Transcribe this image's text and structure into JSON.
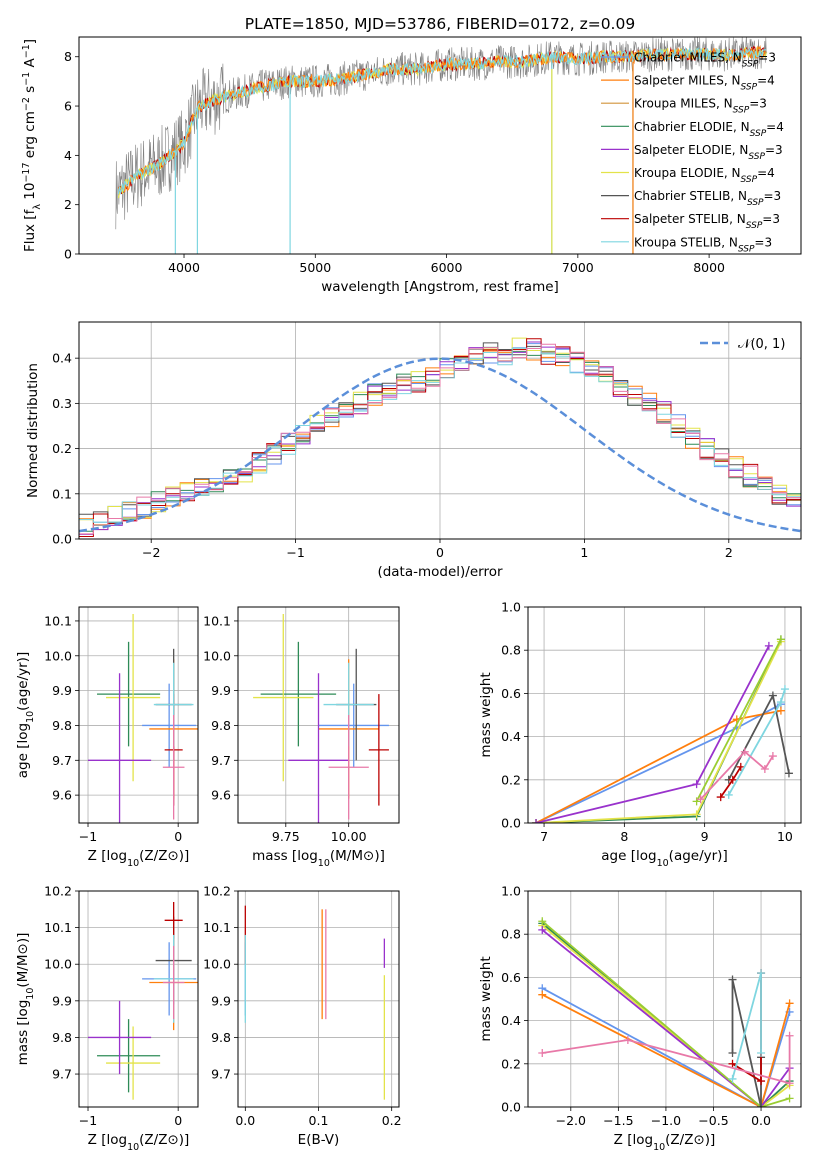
{
  "figure_title": "PLATE=1850, MJD=53786, FIBERID=0172, z=0.09",
  "palette": {
    "Chabrier MILES": "#6495ed",
    "Salpeter MILES": "#ff7f0e",
    "Kroupa MILES": "#d2943a",
    "Chabrier ELODIE": "#2e8b57",
    "Salpeter ELODIE": "#9932cc",
    "Kroupa ELODIE": "#e3e34a",
    "Chabrier STELIB": "#555555",
    "Salpeter STELIB": "#bb0000",
    "Kroupa STELIB": "#7fd6e0",
    "extra_pink": "#e879a8",
    "extra_lime": "#9acd32",
    "data": "#808080",
    "normal": "#5b8fd9"
  },
  "chart_data": [
    {
      "id": "spectrum",
      "type": "line",
      "title": "PLATE=1850, MJD=53786, FIBERID=0172, z=0.09",
      "xlabel": "wavelength [Angstrom, rest frame]",
      "ylabel": "Flux [f_λ 10^-17 erg cm^-2 s^-1 A^-1]",
      "xlim": [
        3200,
        8700
      ],
      "ylim": [
        0,
        8.8
      ],
      "xticks": [
        4000,
        5000,
        6000,
        7000,
        8000
      ],
      "yticks": [
        0,
        2,
        4,
        6,
        8
      ],
      "grid": false,
      "legend_position": "top-right",
      "legend": [
        {
          "label": "Chabrier MILES, N",
          "sub": "SSP",
          "suffix": "=3"
        },
        {
          "label": "Salpeter MILES, N",
          "sub": "SSP",
          "suffix": "=4"
        },
        {
          "label": "Kroupa MILES, N",
          "sub": "SSP",
          "suffix": "=3"
        },
        {
          "label": "Chabrier ELODIE, N",
          "sub": "SSP",
          "suffix": "=4"
        },
        {
          "label": "Salpeter ELODIE, N",
          "sub": "SSP",
          "suffix": "=3"
        },
        {
          "label": "Kroupa ELODIE, N",
          "sub": "SSP",
          "suffix": "=4"
        },
        {
          "label": "Chabrier STELIB, N",
          "sub": "SSP",
          "suffix": "=3"
        },
        {
          "label": "Salpeter STELIB, N",
          "sub": "SSP",
          "suffix": "=3"
        },
        {
          "label": "Kroupa STELIB, N",
          "sub": "SSP",
          "suffix": "=3"
        }
      ],
      "continuum_x": [
        3500,
        3650,
        3800,
        4000,
        4100,
        4200,
        4400,
        4600,
        4800,
        5000,
        5200,
        5400,
        5600,
        5800,
        6000,
        6200,
        6400,
        6600,
        6800,
        7000,
        7200,
        7400,
        7600,
        7800,
        8000,
        8200,
        8400
      ],
      "continuum_y": [
        2.5,
        3.2,
        3.6,
        4.5,
        5.9,
        6.2,
        6.5,
        6.8,
        7.0,
        7.0,
        7.1,
        7.3,
        7.5,
        7.5,
        7.7,
        7.7,
        7.8,
        7.8,
        8.0,
        7.9,
        8.0,
        8.0,
        8.1,
        8.1,
        8.1,
        8.1,
        8.2
      ],
      "absorption_spikes": [
        {
          "x": 3934,
          "depth": 0.0
        },
        {
          "x": 4102,
          "depth": 0.0
        },
        {
          "x": 4808,
          "depth": 0.0
        },
        {
          "x": 6802,
          "depth": 0.0
        },
        {
          "x": 7420,
          "depth": 0.0
        }
      ]
    },
    {
      "id": "residuals",
      "type": "bar",
      "xlabel": "(data-model)/error",
      "ylabel": "Normed distribution",
      "xlim": [
        -2.5,
        2.5
      ],
      "ylim": [
        0,
        0.48
      ],
      "xticks": [
        -2,
        -1,
        0,
        1,
        2
      ],
      "yticks": [
        0.0,
        0.1,
        0.2,
        0.3,
        0.4
      ],
      "grid": true,
      "legend_position": "top-right",
      "legend": [
        {
          "label": "𝒩(0, 1)"
        }
      ],
      "bin_width": 0.1,
      "base_hist": [
        0.03,
        0.04,
        0.05,
        0.06,
        0.07,
        0.08,
        0.09,
        0.1,
        0.11,
        0.12,
        0.13,
        0.15,
        0.17,
        0.19,
        0.21,
        0.23,
        0.25,
        0.27,
        0.29,
        0.3,
        0.32,
        0.33,
        0.34,
        0.35,
        0.36,
        0.38,
        0.39,
        0.4,
        0.41,
        0.41,
        0.42,
        0.42,
        0.41,
        0.4,
        0.39,
        0.38,
        0.36,
        0.34,
        0.32,
        0.3,
        0.28,
        0.25,
        0.22,
        0.2,
        0.18,
        0.16,
        0.14,
        0.12,
        0.1,
        0.08
      ]
    },
    {
      "id": "age_vs_Z",
      "type": "scatter",
      "xlabel": "Z [log10(Z/Z⊙)]",
      "ylabel": "age [log10(age/yr)]",
      "xlim": [
        -1.1,
        0.22
      ],
      "ylim": [
        9.52,
        10.14
      ],
      "xticks": [
        -1,
        0
      ],
      "xticklabels": [
        "−1",
        "0"
      ],
      "yticks": [
        9.6,
        9.7,
        9.8,
        9.9,
        10.0,
        10.1
      ],
      "grid": true,
      "points": [
        {
          "s": "Chabrier MILES",
          "x": -0.1,
          "y": 9.8,
          "xerr": 0.3,
          "yerr": 0.12
        },
        {
          "s": "Salpeter MILES",
          "x": -0.05,
          "y": 9.79,
          "xerr": 0.27,
          "yerr": 0.2
        },
        {
          "s": "Chabrier ELODIE",
          "x": -0.55,
          "y": 9.89,
          "xerr": 0.35,
          "yerr": 0.15
        },
        {
          "s": "Kroupa ELODIE",
          "x": -0.5,
          "y": 9.88,
          "xerr": 0.3,
          "yerr": 0.24
        },
        {
          "s": "Salpeter ELODIE",
          "x": -0.65,
          "y": 9.7,
          "xerr": 0.35,
          "yerr": 0.25
        },
        {
          "s": "Chabrier STELIB",
          "x": -0.05,
          "y": 9.86,
          "xerr": 0.2,
          "yerr": 0.16
        },
        {
          "s": "Salpeter STELIB",
          "x": -0.05,
          "y": 9.73,
          "xerr": 0.1,
          "yerr": 0.16
        },
        {
          "s": "Kroupa STELIB",
          "x": -0.05,
          "y": 9.86,
          "xerr": 0.22,
          "yerr": 0.12
        },
        {
          "s": "extra_pink",
          "x": -0.05,
          "y": 9.68,
          "xerr": 0.12,
          "yerr": 0.15
        }
      ]
    },
    {
      "id": "age_vs_mass",
      "type": "scatter",
      "xlabel": "mass [log10(M/M⊙)]",
      "xlim": [
        9.56,
        10.2
      ],
      "ylim": [
        9.52,
        10.14
      ],
      "xticks": [
        9.75,
        10.0
      ],
      "xticklabels": [
        "9.75",
        "10.00"
      ],
      "yticks": [
        9.6,
        9.7,
        9.8,
        9.9,
        10.0,
        10.1
      ],
      "grid": true,
      "points": [
        {
          "s": "Chabrier MILES",
          "x": 10.02,
          "y": 9.8,
          "xerr": 0.14,
          "yerr": 0.12
        },
        {
          "s": "Salpeter MILES",
          "x": 10.0,
          "y": 9.79,
          "xerr": 0.12,
          "yerr": 0.2
        },
        {
          "s": "Chabrier ELODIE",
          "x": 9.8,
          "y": 9.89,
          "xerr": 0.15,
          "yerr": 0.15
        },
        {
          "s": "Kroupa ELODIE",
          "x": 9.74,
          "y": 9.88,
          "xerr": 0.12,
          "yerr": 0.24
        },
        {
          "s": "Salpeter ELODIE",
          "x": 9.88,
          "y": 9.7,
          "xerr": 0.12,
          "yerr": 0.25
        },
        {
          "s": "Chabrier STELIB",
          "x": 10.03,
          "y": 9.86,
          "xerr": 0.08,
          "yerr": 0.16
        },
        {
          "s": "Salpeter STELIB",
          "x": 10.12,
          "y": 9.73,
          "xerr": 0.04,
          "yerr": 0.16
        },
        {
          "s": "Kroupa STELIB",
          "x": 10.0,
          "y": 9.86,
          "xerr": 0.1,
          "yerr": 0.12
        },
        {
          "s": "extra_pink",
          "x": 10.0,
          "y": 9.68,
          "xerr": 0.08,
          "yerr": 0.15
        }
      ]
    },
    {
      "id": "massweight_vs_age",
      "type": "line",
      "xlabel": "age [log10(age/yr)]",
      "ylabel": "mass weight",
      "xlim": [
        6.8,
        10.2
      ],
      "ylim": [
        0,
        1.0
      ],
      "xticks": [
        7,
        8,
        9,
        10
      ],
      "yticks": [
        0.0,
        0.2,
        0.4,
        0.6,
        0.8,
        1.0
      ],
      "grid": true,
      "series": [
        {
          "s": "Chabrier MILES",
          "x": [
            6.9,
            9.4,
            9.95
          ],
          "y": [
            0.0,
            0.44,
            0.55
          ]
        },
        {
          "s": "Salpeter MILES",
          "x": [
            6.9,
            9.4,
            9.95
          ],
          "y": [
            0.0,
            0.48,
            0.52
          ]
        },
        {
          "s": "Chabrier ELODIE",
          "x": [
            6.9,
            8.9,
            9.95
          ],
          "y": [
            0.0,
            0.03,
            0.85
          ]
        },
        {
          "s": "Kroupa ELODIE",
          "x": [
            6.9,
            8.9,
            9.95
          ],
          "y": [
            0.0,
            0.04,
            0.84
          ]
        },
        {
          "s": "Salpeter ELODIE",
          "x": [
            6.9,
            8.9,
            9.8
          ],
          "y": [
            0.0,
            0.18,
            0.82
          ]
        },
        {
          "s": "extra_lime",
          "x": [
            8.9,
            9.95
          ],
          "y": [
            0.1,
            0.85
          ]
        },
        {
          "s": "Chabrier STELIB",
          "x": [
            9.3,
            9.85,
            10.05
          ],
          "y": [
            0.2,
            0.59,
            0.23
          ]
        },
        {
          "s": "Salpeter STELIB",
          "x": [
            9.2,
            9.35,
            9.45
          ],
          "y": [
            0.12,
            0.2,
            0.26
          ]
        },
        {
          "s": "Kroupa STELIB",
          "x": [
            9.3,
            9.95,
            10.0
          ],
          "y": [
            0.13,
            0.56,
            0.62
          ]
        },
        {
          "s": "extra_pink",
          "x": [
            8.95,
            9.5,
            9.75,
            9.85
          ],
          "y": [
            0.11,
            0.33,
            0.25,
            0.31
          ]
        }
      ]
    },
    {
      "id": "mass_vs_Z",
      "type": "scatter",
      "xlabel": "Z [log10(Z/Z⊙)]",
      "ylabel": "mass [log10(M/M⊙)]",
      "xlim": [
        -1.1,
        0.22
      ],
      "ylim": [
        9.61,
        10.2
      ],
      "xticks": [
        -1,
        0
      ],
      "xticklabels": [
        "−1",
        "0"
      ],
      "yticks": [
        9.7,
        9.8,
        9.9,
        10.0,
        10.1,
        10.2
      ],
      "grid": true,
      "points": [
        {
          "s": "Chabrier MILES",
          "x": -0.1,
          "y": 9.96,
          "xerr": 0.3,
          "yerr": 0.1
        },
        {
          "s": "Salpeter MILES",
          "x": -0.05,
          "y": 9.95,
          "xerr": 0.27,
          "yerr": 0.13
        },
        {
          "s": "Chabrier ELODIE",
          "x": -0.55,
          "y": 9.75,
          "xerr": 0.35,
          "yerr": 0.1
        },
        {
          "s": "Kroupa ELODIE",
          "x": -0.5,
          "y": 9.73,
          "xerr": 0.3,
          "yerr": 0.1
        },
        {
          "s": "Salpeter ELODIE",
          "x": -0.65,
          "y": 9.8,
          "xerr": 0.35,
          "yerr": 0.1
        },
        {
          "s": "Chabrier STELIB",
          "x": -0.05,
          "y": 10.01,
          "xerr": 0.2,
          "yerr": 0.12
        },
        {
          "s": "Salpeter STELIB",
          "x": -0.05,
          "y": 10.12,
          "xerr": 0.1,
          "yerr": 0.05
        },
        {
          "s": "Kroupa STELIB",
          "x": -0.05,
          "y": 9.96,
          "xerr": 0.22,
          "yerr": 0.12
        },
        {
          "s": "extra_pink",
          "x": -0.05,
          "y": 9.95,
          "xerr": 0.12,
          "yerr": 0.1
        }
      ]
    },
    {
      "id": "mass_vs_ebv",
      "type": "scatter",
      "xlabel": "E(B-V)",
      "xlim": [
        -0.01,
        0.21
      ],
      "ylim": [
        9.61,
        10.2
      ],
      "xticks": [
        0.0,
        0.1,
        0.2
      ],
      "xticklabels": [
        "0.0",
        "0.1",
        "0.2"
      ],
      "yticks": [
        9.7,
        9.8,
        9.9,
        10.0,
        10.1,
        10.2
      ],
      "grid": true,
      "points": [
        {
          "s": "Chabrier MILES",
          "x": 0.0,
          "y": 9.96,
          "xerr": 0,
          "yerr": 0.1
        },
        {
          "s": "Salpeter STELIB",
          "x": 0.0,
          "y": 10.08,
          "xerr": 0,
          "yerr": 0.08
        },
        {
          "s": "Kroupa STELIB",
          "x": 0.0,
          "y": 9.96,
          "xerr": 0,
          "yerr": 0.12
        },
        {
          "s": "Salpeter MILES",
          "x": 0.105,
          "y": 10.0,
          "xerr": 0,
          "yerr": 0.15
        },
        {
          "s": "extra_pink",
          "x": 0.11,
          "y": 10.0,
          "xerr": 0,
          "yerr": 0.15
        },
        {
          "s": "Kroupa ELODIE",
          "x": 0.19,
          "y": 9.8,
          "xerr": 0,
          "yerr": 0.17
        },
        {
          "s": "Salpeter ELODIE",
          "x": 0.19,
          "y": 10.03,
          "xerr": 0,
          "yerr": 0.04
        }
      ]
    },
    {
      "id": "massweight_vs_Z",
      "type": "line",
      "xlabel": "Z [log10(Z/Z⊙)]",
      "ylabel": "mass weight",
      "xlim": [
        -2.45,
        0.42
      ],
      "ylim": [
        0,
        1.0
      ],
      "xticks": [
        -2.0,
        -1.5,
        -1.0,
        -0.5,
        0.0
      ],
      "xticklabels": [
        "−2.0",
        "−1.5",
        "−1.0",
        "−0.5",
        "0.0"
      ],
      "yticks": [
        0.0,
        0.2,
        0.4,
        0.6,
        0.8,
        1.0
      ],
      "grid": true,
      "series": [
        {
          "s": "Chabrier MILES",
          "x": [
            -2.3,
            0.0,
            0.3
          ],
          "y": [
            0.55,
            0.0,
            0.44
          ]
        },
        {
          "s": "Salpeter MILES",
          "x": [
            -2.3,
            0.0,
            0.3
          ],
          "y": [
            0.52,
            0.0,
            0.48
          ]
        },
        {
          "s": "Chabrier ELODIE",
          "x": [
            -2.3,
            0.0,
            0.3
          ],
          "y": [
            0.85,
            0.0,
            0.12
          ]
        },
        {
          "s": "Kroupa ELODIE",
          "x": [
            -2.3,
            0.0,
            0.3
          ],
          "y": [
            0.84,
            0.0,
            0.1
          ]
        },
        {
          "s": "Salpeter ELODIE",
          "x": [
            -2.3,
            0.0,
            0.3
          ],
          "y": [
            0.82,
            0.0,
            0.18
          ]
        },
        {
          "s": "extra_lime",
          "x": [
            -2.3,
            0.0,
            0.3
          ],
          "y": [
            0.86,
            0.0,
            0.04
          ]
        },
        {
          "s": "Chabrier STELIB",
          "x": [
            -0.3,
            -0.3,
            0.0,
            0.0
          ],
          "y": [
            0.25,
            0.59,
            0.0,
            0.23
          ]
        },
        {
          "s": "Salpeter STELIB",
          "x": [
            -0.3,
            0.0,
            0.0
          ],
          "y": [
            0.2,
            0.12,
            0.62
          ]
        },
        {
          "s": "Kroupa STELIB",
          "x": [
            -0.3,
            0.0,
            0.0
          ],
          "y": [
            0.13,
            0.62,
            0.25
          ]
        },
        {
          "s": "extra_pink",
          "x": [
            -2.3,
            -1.4,
            0.3,
            0.3
          ],
          "y": [
            0.25,
            0.31,
            0.11,
            0.33
          ]
        }
      ]
    }
  ]
}
